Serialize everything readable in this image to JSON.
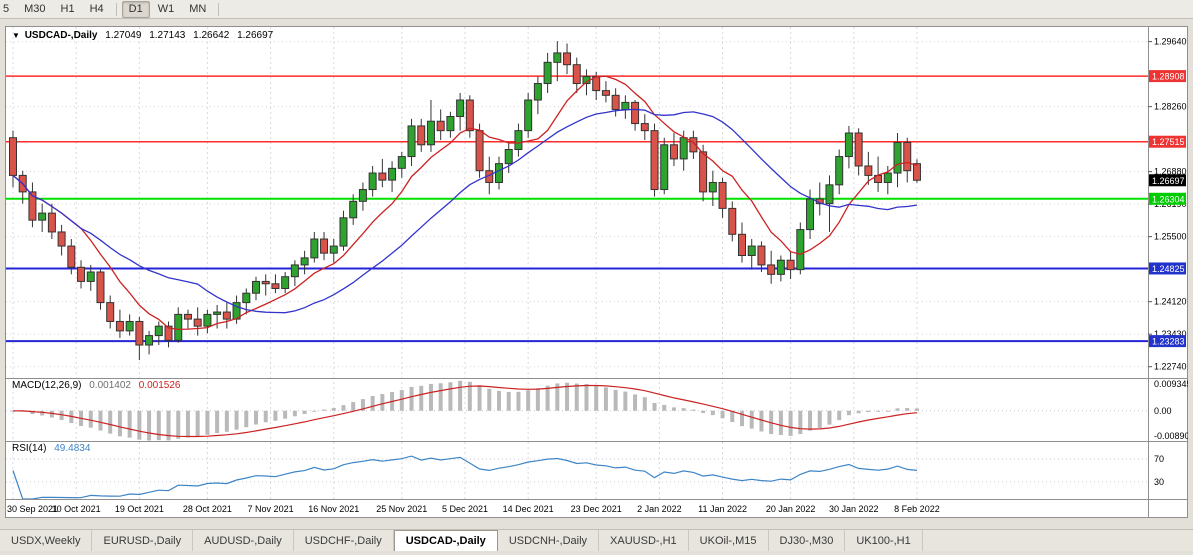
{
  "toolbar": {
    "items": [
      "5",
      "M30",
      "H1",
      "H4",
      "|",
      "D1",
      "W1",
      "MN",
      "|"
    ],
    "active": "D1"
  },
  "chart": {
    "title": {
      "symbol": "USDCAD-,Daily",
      "open": "1.27049",
      "high": "1.27143",
      "low": "1.26642",
      "close": "1.26697"
    },
    "colors": {
      "background": "#ffffff",
      "grid": "#d8d8d8",
      "frame": "#8f8f8f",
      "bull": "#2fa32f",
      "bear": "#d9534a",
      "wick": "#333333"
    },
    "price_axis": {
      "min": 1.225,
      "max": 1.2995,
      "labels": [
        {
          "text": "1.29640",
          "price": 1.2964
        },
        {
          "text": "1.28260",
          "price": 1.2826
        },
        {
          "text": "1.26880",
          "price": 1.2688
        },
        {
          "text": "1.26190",
          "price": 1.2619
        },
        {
          "text": "1.25500",
          "price": 1.255
        },
        {
          "text": "1.24120",
          "price": 1.2412
        },
        {
          "text": "1.23430",
          "price": 1.2343
        },
        {
          "text": "1.22740",
          "price": 1.2274
        }
      ]
    },
    "levels": [
      {
        "name": "resistance-line-upper",
        "price": 1.28908,
        "badge": "1.28908",
        "color": "#ff2a2a",
        "badge_bg": "#ee3333",
        "width": 1.5
      },
      {
        "name": "resistance-line-lower",
        "price": 1.27515,
        "badge": "1.27515",
        "color": "#ff2a2a",
        "badge_bg": "#ee3333",
        "width": 1.5
      },
      {
        "name": "support-line-green",
        "price": 1.26304,
        "badge": "1.26304",
        "color": "#00e100",
        "badge_bg": "#00cc00",
        "width": 2
      },
      {
        "name": "support-line-blue-upper",
        "price": 1.24825,
        "badge": "1.24825",
        "color": "#2525d8",
        "badge_bg": "#2233cc",
        "width": 2
      },
      {
        "name": "support-line-blue-lower",
        "price": 1.23283,
        "badge": "1.23283",
        "color": "#2525d8",
        "badge_bg": "#2233cc",
        "width": 2
      }
    ],
    "current_price": {
      "text": "1.26697",
      "price": 1.26697,
      "bg": "#000000",
      "fg": "#ffffff"
    }
  },
  "chart_data": {
    "type": "candlestick",
    "symbol": "USDCAD",
    "timeframe": "Daily",
    "x_labels": [
      {
        "text": "30 Sep 2021",
        "bar": 0
      },
      {
        "text": "10 Oct 2021",
        "bar": 6.5
      },
      {
        "text": "19 Oct 2021",
        "bar": 13
      },
      {
        "text": "28 Oct 2021",
        "bar": 20
      },
      {
        "text": "7 Nov 2021",
        "bar": 26.5
      },
      {
        "text": "16 Nov 2021",
        "bar": 33
      },
      {
        "text": "25 Nov 2021",
        "bar": 40
      },
      {
        "text": "5 Dec 2021",
        "bar": 46.5
      },
      {
        "text": "14 Dec 2021",
        "bar": 53
      },
      {
        "text": "23 Dec 2021",
        "bar": 60
      },
      {
        "text": "2 Jan 2022",
        "bar": 66.5
      },
      {
        "text": "11 Jan 2022",
        "bar": 73
      },
      {
        "text": "20 Jan 2022",
        "bar": 80
      },
      {
        "text": "30 Jan 2022",
        "bar": 86.5
      },
      {
        "text": "8 Feb 2022",
        "bar": 93
      }
    ],
    "candles": [
      [
        1.276,
        1.2775,
        1.2655,
        1.268
      ],
      [
        1.268,
        1.269,
        1.262,
        1.2645
      ],
      [
        1.2645,
        1.2665,
        1.257,
        1.2585
      ],
      [
        1.2585,
        1.262,
        1.256,
        1.26
      ],
      [
        1.26,
        1.262,
        1.2545,
        1.256
      ],
      [
        1.256,
        1.2575,
        1.251,
        1.253
      ],
      [
        1.253,
        1.2545,
        1.247,
        1.2485
      ],
      [
        1.2485,
        1.25,
        1.244,
        1.2455
      ],
      [
        1.2455,
        1.249,
        1.2435,
        1.2475
      ],
      [
        1.2475,
        1.248,
        1.2395,
        1.241
      ],
      [
        1.241,
        1.2425,
        1.2355,
        1.237
      ],
      [
        1.237,
        1.2395,
        1.2335,
        1.235
      ],
      [
        1.235,
        1.2385,
        1.234,
        1.237
      ],
      [
        1.237,
        1.238,
        1.2288,
        1.232
      ],
      [
        1.232,
        1.235,
        1.23,
        1.234
      ],
      [
        1.234,
        1.237,
        1.232,
        1.236
      ],
      [
        1.236,
        1.237,
        1.2315,
        1.233
      ],
      [
        1.233,
        1.24,
        1.2325,
        1.2385
      ],
      [
        1.2385,
        1.2395,
        1.2355,
        1.2375
      ],
      [
        1.2375,
        1.24,
        1.234,
        1.236
      ],
      [
        1.236,
        1.2395,
        1.2345,
        1.2385
      ],
      [
        1.2385,
        1.2405,
        1.2355,
        1.239
      ],
      [
        1.239,
        1.241,
        1.2355,
        1.2375
      ],
      [
        1.2375,
        1.2425,
        1.2365,
        1.241
      ],
      [
        1.241,
        1.244,
        1.2385,
        1.243
      ],
      [
        1.243,
        1.2465,
        1.2415,
        1.2455
      ],
      [
        1.2455,
        1.247,
        1.2425,
        1.245
      ],
      [
        1.245,
        1.247,
        1.243,
        1.244
      ],
      [
        1.244,
        1.2475,
        1.243,
        1.2465
      ],
      [
        1.2465,
        1.25,
        1.2445,
        1.249
      ],
      [
        1.249,
        1.252,
        1.247,
        1.2505
      ],
      [
        1.2505,
        1.256,
        1.2495,
        1.2545
      ],
      [
        1.2545,
        1.256,
        1.25,
        1.2515
      ],
      [
        1.2515,
        1.2545,
        1.2495,
        1.253
      ],
      [
        1.253,
        1.2605,
        1.252,
        1.259
      ],
      [
        1.259,
        1.264,
        1.2575,
        1.2625
      ],
      [
        1.2625,
        1.2665,
        1.2605,
        1.265
      ],
      [
        1.265,
        1.27,
        1.2635,
        1.2685
      ],
      [
        1.2685,
        1.2715,
        1.2655,
        1.267
      ],
      [
        1.267,
        1.271,
        1.2645,
        1.2695
      ],
      [
        1.2695,
        1.273,
        1.2675,
        1.272
      ],
      [
        1.272,
        1.28,
        1.27,
        1.2785
      ],
      [
        1.2785,
        1.28,
        1.273,
        1.2745
      ],
      [
        1.2745,
        1.284,
        1.273,
        1.2795
      ],
      [
        1.2795,
        1.282,
        1.2755,
        1.2775
      ],
      [
        1.2775,
        1.2815,
        1.276,
        1.2805
      ],
      [
        1.2805,
        1.2855,
        1.2775,
        1.284
      ],
      [
        1.284,
        1.285,
        1.276,
        1.2775
      ],
      [
        1.2775,
        1.279,
        1.2675,
        1.269
      ],
      [
        1.269,
        1.272,
        1.264,
        1.2665
      ],
      [
        1.2665,
        1.272,
        1.265,
        1.2705
      ],
      [
        1.2705,
        1.275,
        1.2685,
        1.2735
      ],
      [
        1.2735,
        1.279,
        1.272,
        1.2775
      ],
      [
        1.2775,
        1.2855,
        1.276,
        1.284
      ],
      [
        1.284,
        1.289,
        1.281,
        1.2875
      ],
      [
        1.2875,
        1.294,
        1.2855,
        1.292
      ],
      [
        1.292,
        1.2965,
        1.288,
        1.294
      ],
      [
        1.294,
        1.296,
        1.2895,
        1.2915
      ],
      [
        1.2915,
        1.293,
        1.2855,
        1.2875
      ],
      [
        1.2875,
        1.2905,
        1.285,
        1.289
      ],
      [
        1.289,
        1.29,
        1.284,
        1.286
      ],
      [
        1.286,
        1.288,
        1.2835,
        1.285
      ],
      [
        1.285,
        1.2865,
        1.2805,
        1.282
      ],
      [
        1.282,
        1.285,
        1.28,
        1.2835
      ],
      [
        1.2835,
        1.284,
        1.2775,
        1.279
      ],
      [
        1.279,
        1.281,
        1.2755,
        1.2775
      ],
      [
        1.2775,
        1.279,
        1.2635,
        1.265
      ],
      [
        1.265,
        1.276,
        1.264,
        1.2745
      ],
      [
        1.2745,
        1.277,
        1.27,
        1.2715
      ],
      [
        1.2715,
        1.2775,
        1.269,
        1.276
      ],
      [
        1.276,
        1.2775,
        1.2715,
        1.273
      ],
      [
        1.273,
        1.2745,
        1.2625,
        1.2645
      ],
      [
        1.2645,
        1.269,
        1.2615,
        1.2665
      ],
      [
        1.2665,
        1.2675,
        1.259,
        1.261
      ],
      [
        1.261,
        1.2625,
        1.254,
        1.2555
      ],
      [
        1.2555,
        1.258,
        1.2495,
        1.251
      ],
      [
        1.251,
        1.2545,
        1.248,
        1.253
      ],
      [
        1.253,
        1.254,
        1.2475,
        1.249
      ],
      [
        1.249,
        1.252,
        1.245,
        1.247
      ],
      [
        1.247,
        1.251,
        1.2455,
        1.25
      ],
      [
        1.25,
        1.252,
        1.246,
        1.248
      ],
      [
        1.248,
        1.258,
        1.247,
        1.2565
      ],
      [
        1.2565,
        1.265,
        1.2545,
        1.263
      ],
      [
        1.263,
        1.2665,
        1.2595,
        1.262
      ],
      [
        1.262,
        1.268,
        1.256,
        1.266
      ],
      [
        1.266,
        1.2735,
        1.264,
        1.272
      ],
      [
        1.272,
        1.2785,
        1.2695,
        1.277
      ],
      [
        1.277,
        1.278,
        1.268,
        1.27
      ],
      [
        1.27,
        1.273,
        1.266,
        1.268
      ],
      [
        1.268,
        1.272,
        1.2645,
        1.2665
      ],
      [
        1.2665,
        1.27,
        1.264,
        1.2685
      ],
      [
        1.2685,
        1.277,
        1.2655,
        1.275
      ],
      [
        1.275,
        1.276,
        1.2665,
        1.269
      ],
      [
        1.27049,
        1.27143,
        1.26642,
        1.26697
      ]
    ],
    "overlays": [
      {
        "name": "ma-fast-line",
        "type": "sma",
        "period": 8,
        "color": "#cc2222"
      },
      {
        "name": "ma-slow-line",
        "type": "sma",
        "period": 20,
        "color": "#3333cc"
      }
    ],
    "panes": [
      {
        "name": "macd",
        "label": "MACD(12,26,9)",
        "value_main": "0.001402",
        "value_signal": "0.001526",
        "axis_labels": [
          "0.009345",
          "0.00",
          "-0.008900"
        ],
        "scale_max": 0.009345,
        "scale_min": -0.0089,
        "histogram_color": "#b9b9b9",
        "signal_color": "#cc2222"
      },
      {
        "name": "rsi",
        "label": "RSI(14)",
        "value": "49.4834",
        "axis_labels": [
          "70",
          "30"
        ],
        "level_lines": [
          70,
          30
        ],
        "scale_max": 100,
        "scale_min": 0,
        "line_color": "#3d85c6"
      }
    ]
  },
  "tabs": {
    "items": [
      "USDX,Weekly",
      "EURUSD-,Daily",
      "AUDUSD-,Daily",
      "USDCHF-,Daily",
      "USDCAD-,Daily",
      "USDCNH-,Daily",
      "XAUUSD-,H1",
      "UKOil-,M15",
      "DJ30-,M30",
      "UK100-,H1"
    ],
    "active_index": 4
  }
}
